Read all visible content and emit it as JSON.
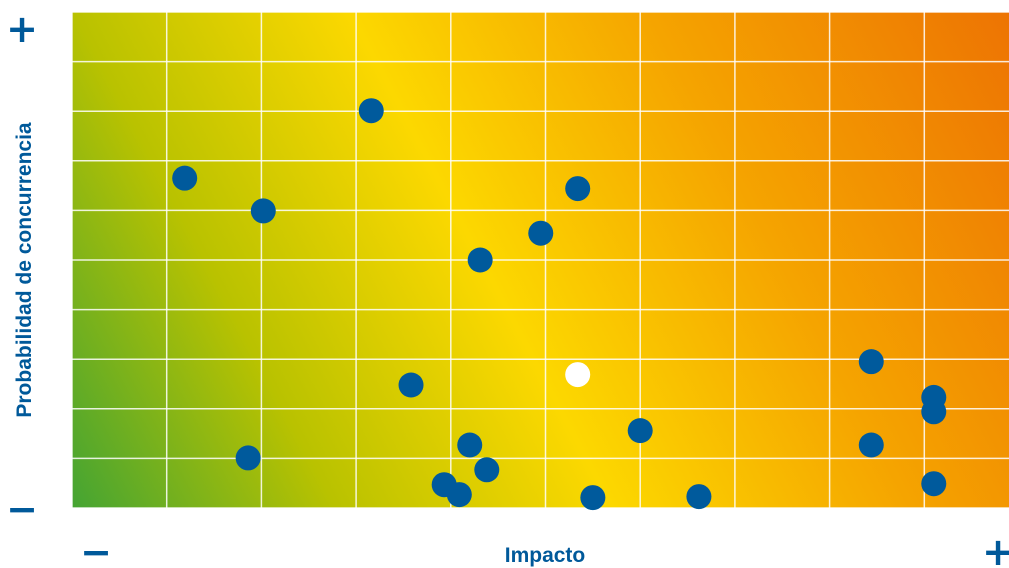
{
  "chart_data": {
    "type": "scatter",
    "title": "",
    "xlabel": "Impacto",
    "ylabel": "Probabilidad de concurrencia",
    "x_min_label": "−",
    "x_max_label": "+",
    "y_min_label": "−",
    "y_max_label": "+",
    "xlim": [
      0,
      10
    ],
    "ylim": [
      0,
      10
    ],
    "grid": true,
    "legend": "none",
    "background_gradient": [
      "#44a433",
      "#b9c200",
      "#fcd800",
      "#f5a400",
      "#ed7403"
    ],
    "series": [
      {
        "color": "#005a9c",
        "points": [
          {
            "x": 1.19,
            "y": 6.65
          },
          {
            "x": 2.02,
            "y": 5.99
          },
          {
            "x": 3.16,
            "y": 8.01
          },
          {
            "x": 1.86,
            "y": 1.01
          },
          {
            "x": 3.58,
            "y": 2.48
          },
          {
            "x": 3.93,
            "y": 0.47
          },
          {
            "x": 4.09,
            "y": 0.27
          },
          {
            "x": 4.2,
            "y": 1.27
          },
          {
            "x": 4.31,
            "y": 5.0
          },
          {
            "x": 4.38,
            "y": 0.77
          },
          {
            "x": 4.95,
            "y": 5.54
          },
          {
            "x": 5.34,
            "y": 6.44
          },
          {
            "x": 5.5,
            "y": 0.21
          },
          {
            "x": 6.0,
            "y": 1.56
          },
          {
            "x": 6.62,
            "y": 0.23
          },
          {
            "x": 8.44,
            "y": 2.95
          },
          {
            "x": 8.44,
            "y": 1.27
          },
          {
            "x": 9.1,
            "y": 2.23
          },
          {
            "x": 9.1,
            "y": 1.94
          },
          {
            "x": 9.1,
            "y": 0.49
          }
        ]
      },
      {
        "color": "#ffffff",
        "points": [
          {
            "x": 5.34,
            "y": 2.69
          }
        ]
      }
    ]
  }
}
